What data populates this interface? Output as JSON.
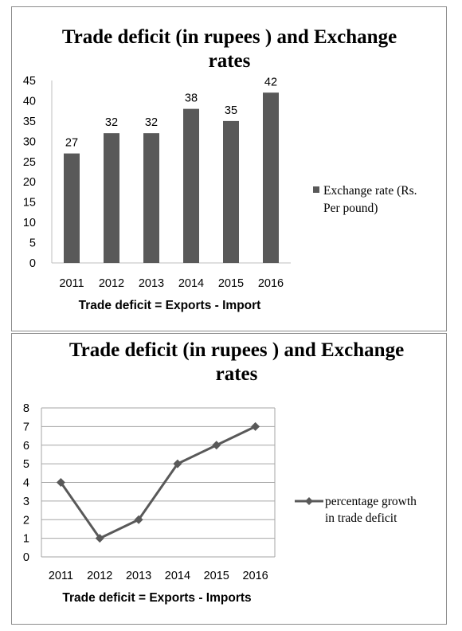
{
  "chart_data": [
    {
      "type": "bar",
      "title_lines": [
        "Trade deficit (in rupees ) and Exchange",
        "rates"
      ],
      "categories": [
        "2011",
        "2012",
        "2013",
        "2014",
        "2015",
        "2016"
      ],
      "series": [
        {
          "name": "Exchange rate (Rs. Per pound)",
          "legend_lines": [
            "Exchange rate (Rs.",
            "Per pound)"
          ],
          "values": [
            27,
            32,
            32,
            38,
            35,
            42
          ]
        }
      ],
      "xlabel": "Trade deficit = Exports - Import",
      "ylim": [
        0,
        45
      ],
      "yticks": [
        "0",
        "5",
        "10",
        "15",
        "20",
        "25",
        "30",
        "35",
        "40",
        "45"
      ],
      "data_labels": [
        "27",
        "32",
        "32",
        "38",
        "35",
        "42"
      ],
      "grid": false,
      "legend_position": "right",
      "colors": {
        "bar": "#595959"
      }
    },
    {
      "type": "line",
      "title_lines": [
        "Trade deficit (in rupees ) and Exchange",
        "rates"
      ],
      "categories": [
        "2011",
        "2012",
        "2013",
        "2014",
        "2015",
        "2016"
      ],
      "series": [
        {
          "name": "percentage growth in trade deficit",
          "legend_lines": [
            "percentage growth",
            "in trade deficit"
          ],
          "values": [
            4,
            1,
            2,
            5,
            6,
            7
          ],
          "marker": "diamond"
        }
      ],
      "xlabel": "Trade deficit = Exports - Imports",
      "ylim": [
        0,
        8
      ],
      "yticks": [
        "0",
        "1",
        "2",
        "3",
        "4",
        "5",
        "6",
        "7",
        "8"
      ],
      "grid": true,
      "legend_position": "right",
      "colors": {
        "line": "#595959",
        "grid": "#a6a6a6"
      }
    }
  ]
}
